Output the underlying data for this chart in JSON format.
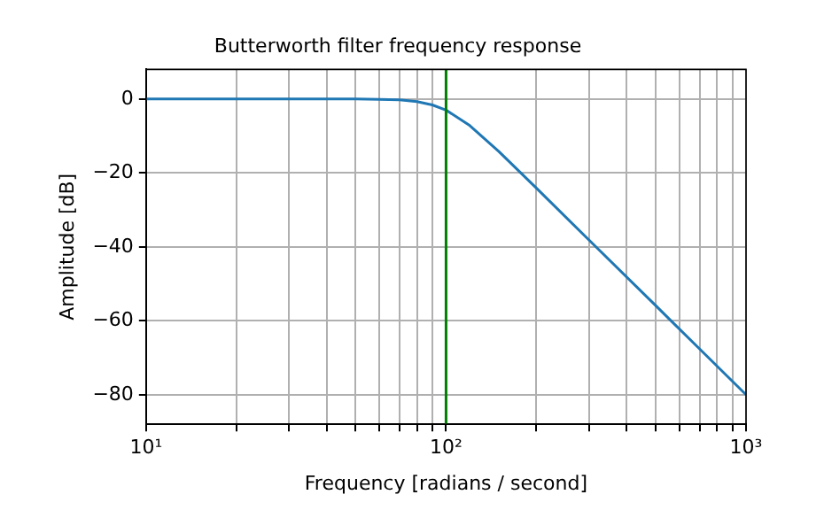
{
  "chart_data": {
    "type": "line",
    "title": "Butterworth filter frequency response",
    "xlabel": "Frequency [radians / second]",
    "ylabel": "Amplitude [dB]",
    "x": [
      10,
      20,
      30,
      40,
      50,
      60,
      70,
      80,
      90,
      100,
      120,
      150,
      200,
      300,
      500,
      700,
      1000
    ],
    "series": [
      {
        "color": "#1f77b4",
        "values": [
          0,
          0,
          0,
          0,
          0,
          -0.1,
          -0.2,
          -0.7,
          -1.6,
          -3.0,
          -7.2,
          -14.2,
          -24.1,
          -38.2,
          -55.9,
          -67.6,
          -80
        ]
      }
    ],
    "log": "x",
    "xlim": [
      10,
      1000
    ],
    "xticks": [
      {
        "value": 10,
        "label": "10¹"
      },
      {
        "value": 20,
        "label": null
      },
      {
        "value": 30,
        "label": null
      },
      {
        "value": 40,
        "label": null
      },
      {
        "value": 50,
        "label": null
      },
      {
        "value": 60,
        "label": null
      },
      {
        "value": 70,
        "label": null
      },
      {
        "value": 80,
        "label": null
      },
      {
        "value": 90,
        "label": null
      },
      {
        "value": 100,
        "label": "10²"
      },
      {
        "value": 200,
        "label": null
      },
      {
        "value": 300,
        "label": null
      },
      {
        "value": 400,
        "label": null
      },
      {
        "value": 500,
        "label": null
      },
      {
        "value": 600,
        "label": null
      },
      {
        "value": 700,
        "label": null
      },
      {
        "value": 800,
        "label": null
      },
      {
        "value": 900,
        "label": null
      },
      {
        "value": 1000,
        "label": "10³"
      }
    ],
    "ylim": [
      -88,
      8
    ],
    "yticks": [
      0,
      {
        "value": -20,
        "label": "−20"
      },
      {
        "value": -40,
        "label": "−40"
      },
      {
        "value": -60,
        "label": "−60"
      },
      {
        "value": -80,
        "label": "−80"
      }
    ],
    "ref_lines": [
      {
        "axis": "x",
        "value": 100,
        "color": "#008000"
      }
    ],
    "grid": true,
    "legend": false,
    "marker": "none",
    "line_style": "solid"
  }
}
